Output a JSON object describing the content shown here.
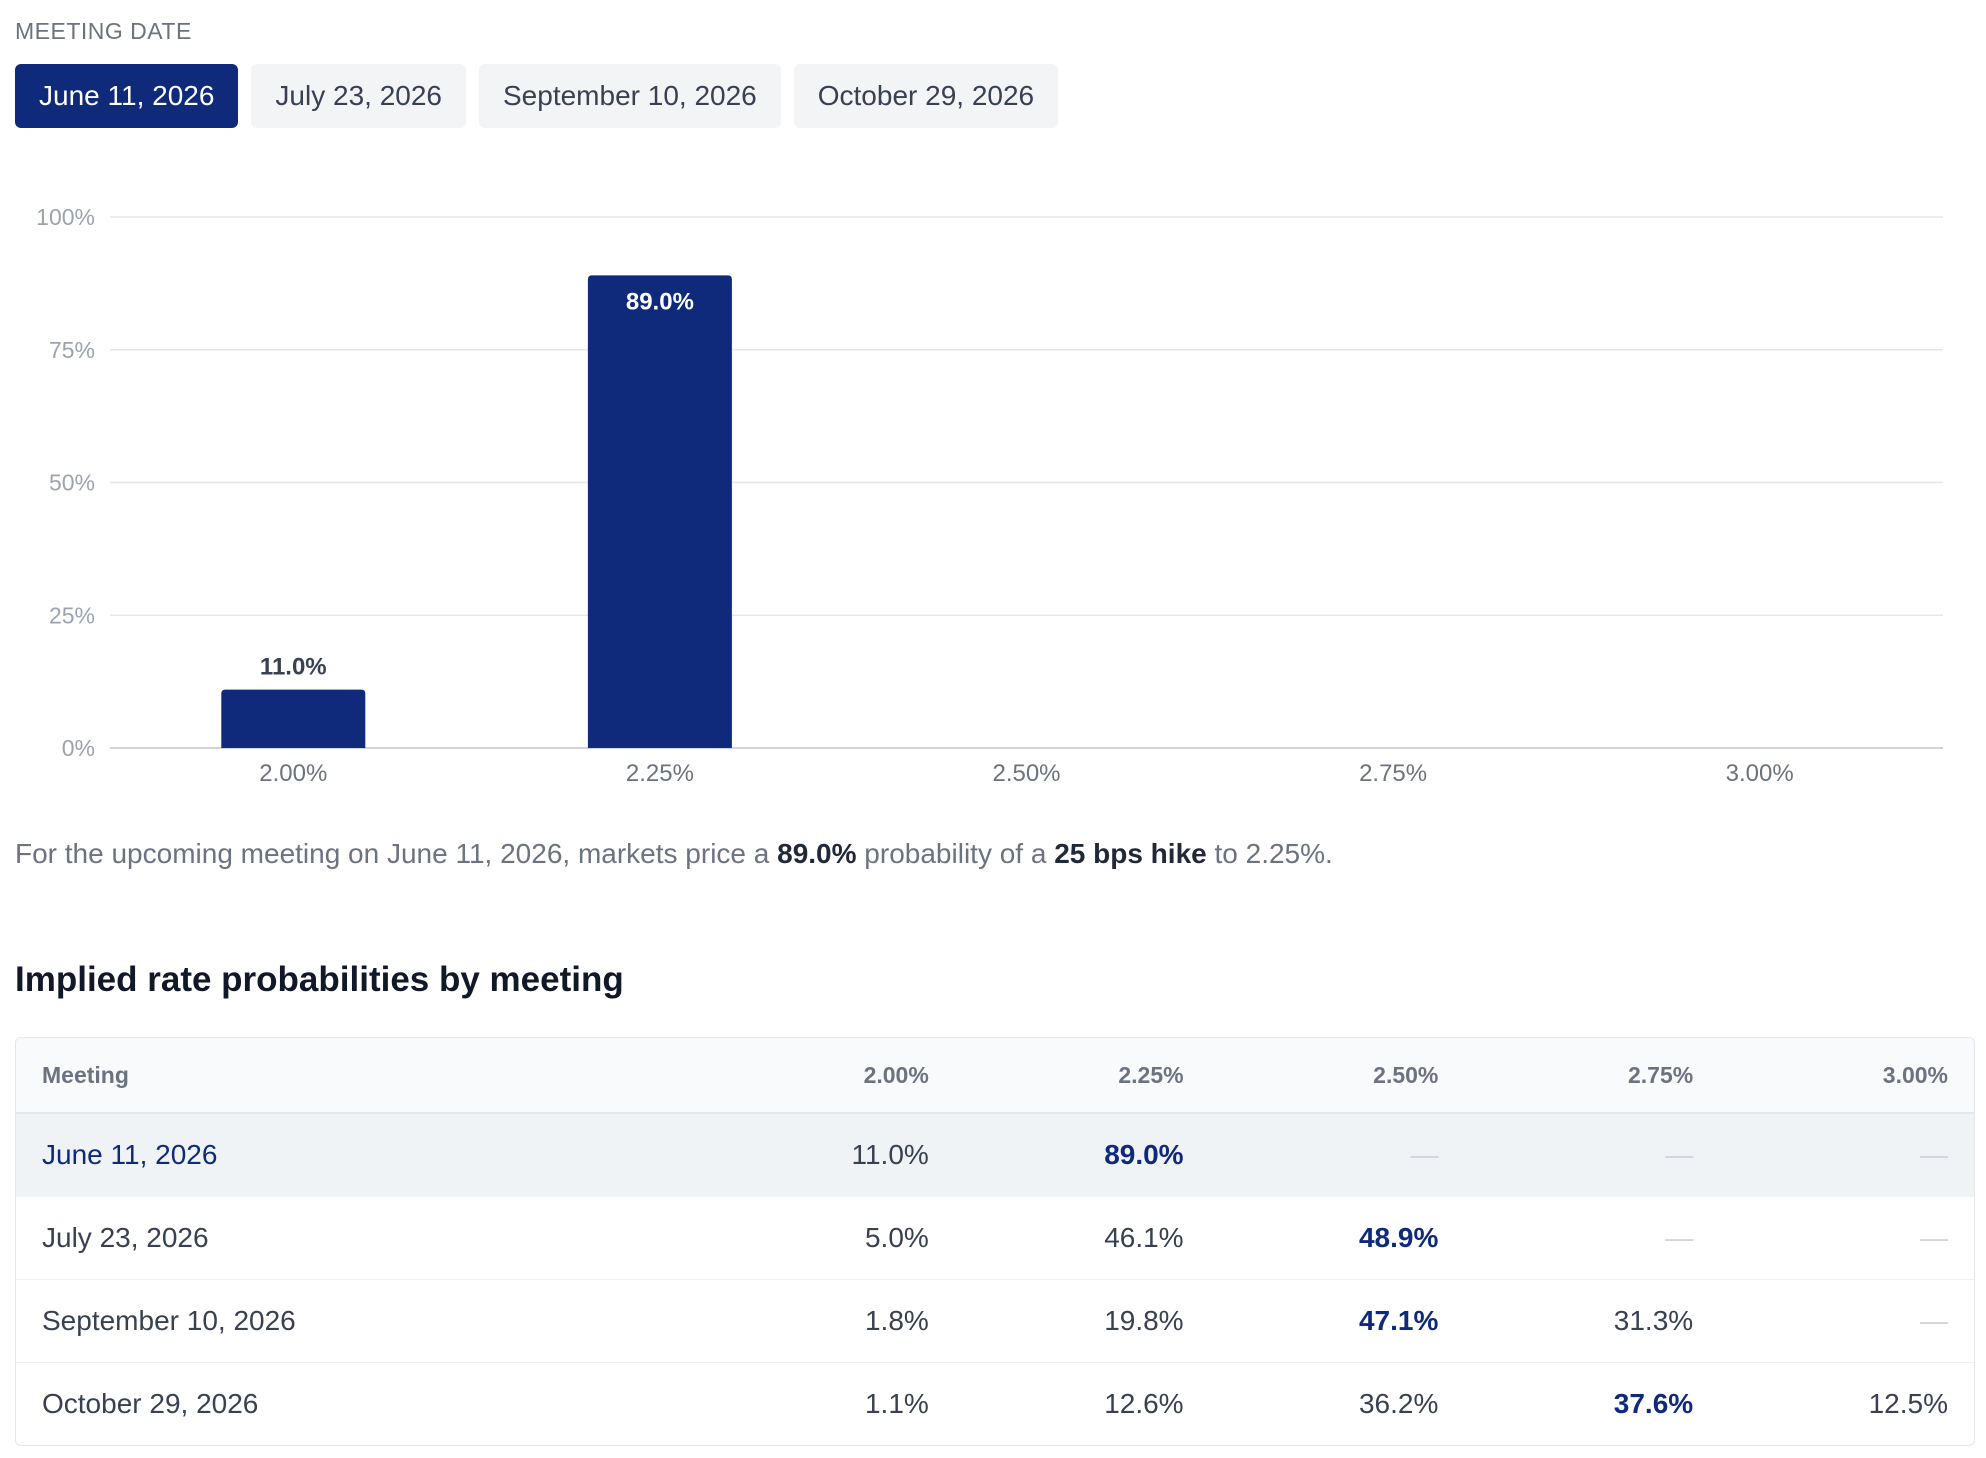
{
  "section_label": "MEETING DATE",
  "tabs": [
    {
      "label": "June 11, 2026",
      "active": true
    },
    {
      "label": "July 23, 2026",
      "active": false
    },
    {
      "label": "September 10, 2026",
      "active": false
    },
    {
      "label": "October 29, 2026",
      "active": false
    }
  ],
  "colors": {
    "accent": "#0f2a7a",
    "grid": "#e5e7eb",
    "axis_text": "#6b7280"
  },
  "chart_data": {
    "type": "bar",
    "title": "",
    "xlabel": "",
    "ylabel": "",
    "categories": [
      "2.00%",
      "2.25%",
      "2.50%",
      "2.75%",
      "3.00%"
    ],
    "values": [
      11.0,
      89.0,
      null,
      null,
      null
    ],
    "value_labels": [
      "11.0%",
      "89.0%",
      "",
      "",
      ""
    ],
    "ylim": [
      0,
      100
    ],
    "yticks": [
      {
        "value": 0,
        "label": "0%"
      },
      {
        "value": 25,
        "label": "25%"
      },
      {
        "value": 50,
        "label": "50%"
      },
      {
        "value": 75,
        "label": "75%"
      },
      {
        "value": 100,
        "label": "100%"
      }
    ],
    "grid": true,
    "color": "#0f2a7a"
  },
  "summary": {
    "prefix": "For the upcoming meeting on June 11, 2026, markets price a ",
    "probability": "89.0%",
    "middle": " probability of a ",
    "move": "25 bps hike",
    "suffix": " to 2.25%."
  },
  "table": {
    "title": "Implied rate probabilities by meeting",
    "headers": [
      "Meeting",
      "2.00%",
      "2.25%",
      "2.50%",
      "2.75%",
      "3.00%"
    ],
    "rows": [
      {
        "meeting": "June 11, 2026",
        "cells": [
          "11.0%",
          "89.0%",
          "—",
          "—",
          "—"
        ],
        "highlight": 1,
        "selected": true
      },
      {
        "meeting": "July 23, 2026",
        "cells": [
          "5.0%",
          "46.1%",
          "48.9%",
          "—",
          "—"
        ],
        "highlight": 2,
        "selected": false
      },
      {
        "meeting": "September 10, 2026",
        "cells": [
          "1.8%",
          "19.8%",
          "47.1%",
          "31.3%",
          "—"
        ],
        "highlight": 2,
        "selected": false
      },
      {
        "meeting": "October 29, 2026",
        "cells": [
          "1.1%",
          "12.6%",
          "36.2%",
          "37.6%",
          "12.5%"
        ],
        "highlight": 3,
        "selected": false
      }
    ]
  }
}
